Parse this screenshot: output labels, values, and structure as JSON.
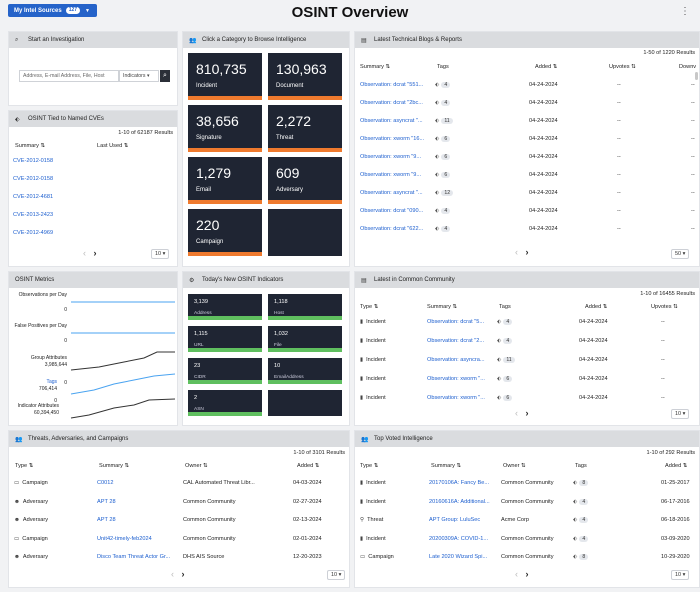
{
  "top": {
    "sources_label": "My Intel Sources",
    "sources_count": "127",
    "title": "OSINT Overview"
  },
  "investigation": {
    "header": "Start an Investigation",
    "placeholder": "Address, E-mail Address, File, Host",
    "type": "Indicators"
  },
  "cves": {
    "header": "OSINT Tied to Named CVEs",
    "results": "1-10 of 62187 Results",
    "col_summary": "Summary",
    "col_used": "Last Used",
    "rows": [
      "CVE-2012-0158",
      "CVE-2012-0158",
      "CVE-2012-4681",
      "CVE-2013-2423",
      "CVE-2012-4969"
    ],
    "page_size": "10"
  },
  "categories": {
    "header": "Click a Category to Browse Intelligence",
    "tiles": [
      {
        "n": "810,735",
        "l": "Incident"
      },
      {
        "n": "130,963",
        "l": "Document"
      },
      {
        "n": "38,656",
        "l": "Signature"
      },
      {
        "n": "2,272",
        "l": "Threat"
      },
      {
        "n": "1,279",
        "l": "Email"
      },
      {
        "n": "609",
        "l": "Adversary"
      },
      {
        "n": "220",
        "l": "Campaign"
      }
    ]
  },
  "blogs": {
    "header": "Latest Technical Blogs & Reports",
    "results": "1-50 of 1220 Results",
    "col_summary": "Summary",
    "col_tags": "Tags",
    "col_added": "Added",
    "col_upvotes": "Upvotes",
    "col_down": "Downv",
    "rows": [
      {
        "s": "Observation: dcrat \"551...",
        "t": "4",
        "d": "04-24-2024",
        "u": "--",
        "v": "--"
      },
      {
        "s": "Observation: dcrat \"2bc...",
        "t": "4",
        "d": "04-24-2024",
        "u": "--",
        "v": "--"
      },
      {
        "s": "Observation: asyncrat \"...",
        "t": "11",
        "d": "04-24-2024",
        "u": "--",
        "v": "--"
      },
      {
        "s": "Observation: xworm \"16...",
        "t": "6",
        "d": "04-24-2024",
        "u": "--",
        "v": "--"
      },
      {
        "s": "Observation: xworm \"9...",
        "t": "6",
        "d": "04-24-2024",
        "u": "--",
        "v": "--"
      },
      {
        "s": "Observation: xworm \"9...",
        "t": "6",
        "d": "04-24-2024",
        "u": "--",
        "v": "--"
      },
      {
        "s": "Observation: asyncrat \"...",
        "t": "12",
        "d": "04-24-2024",
        "u": "--",
        "v": "--"
      },
      {
        "s": "Observation: dcrat \"090...",
        "t": "4",
        "d": "04-24-2024",
        "u": "--",
        "v": "--"
      },
      {
        "s": "Observation: dcrat \"622...",
        "t": "4",
        "d": "04-24-2024",
        "u": "--",
        "v": "--"
      },
      {
        "s": "Observation: dcrat \"a7d...",
        "t": "4",
        "d": "",
        "u": "",
        "v": ""
      }
    ],
    "page_size": "50"
  },
  "metrics": {
    "header": "OSINT Metrics",
    "labels": [
      {
        "name": "Observations per Day",
        "val": "0"
      },
      {
        "name": "False Positives per Day",
        "val": "0"
      },
      {
        "name": "Group Attributes",
        "top": "3,985,644",
        "bot": "0"
      },
      {
        "name": "Tags",
        "top": "706,414",
        "bot": "0"
      },
      {
        "name": "Indicator Attributes",
        "top": "60,394,450"
      }
    ]
  },
  "indicators": {
    "header": "Today's New OSINT Indicators",
    "tiles": [
      {
        "n": "3,139",
        "l": "Address"
      },
      {
        "n": "1,118",
        "l": "Host"
      },
      {
        "n": "1,115",
        "l": "URL"
      },
      {
        "n": "1,032",
        "l": "File"
      },
      {
        "n": "23",
        "l": "CIDR"
      },
      {
        "n": "10",
        "l": "EmailAddress"
      },
      {
        "n": "2",
        "l": "ASN"
      }
    ]
  },
  "community": {
    "header": "Latest in Common Community",
    "results": "1-10 of 16455 Results",
    "col_type": "Type",
    "col_summary": "Summary",
    "col_tags": "Tags",
    "col_added": "Added",
    "col_upvotes": "Upvotes",
    "rows": [
      {
        "type": "Incident",
        "s": "Observation: dcrat \"5...",
        "t": "4",
        "d": "04-24-2024",
        "u": "--"
      },
      {
        "type": "Incident",
        "s": "Observation: dcrat \"2...",
        "t": "4",
        "d": "04-24-2024",
        "u": "--"
      },
      {
        "type": "Incident",
        "s": "Observation: asyncra...",
        "t": "11",
        "d": "04-24-2024",
        "u": "--"
      },
      {
        "type": "Incident",
        "s": "Observation: xworm \"...",
        "t": "6",
        "d": "04-24-2024",
        "u": "--"
      },
      {
        "type": "Incident",
        "s": "Observation: xworm \"...",
        "t": "6",
        "d": "04-24-2024",
        "u": "--"
      }
    ],
    "page_size": "10"
  },
  "threats": {
    "header": "Threats, Adversaries, and Campaigns",
    "results": "1-10 of 3101 Results",
    "col_type": "Type",
    "col_summary": "Summary",
    "col_owner": "Owner",
    "col_added": "Added",
    "rows": [
      {
        "type": "Campaign",
        "s": "C0012",
        "o": "CAL Automated Threat Libr...",
        "d": "04-03-2024"
      },
      {
        "type": "Adversary",
        "s": "APT 28",
        "o": "Common Community",
        "d": "02-27-2024"
      },
      {
        "type": "Adversary",
        "s": "APT 28",
        "o": "Common Community",
        "d": "02-13-2024"
      },
      {
        "type": "Campaign",
        "s": "Unit42-timely-feb2024",
        "o": "Common Community",
        "d": "02-01-2024"
      },
      {
        "type": "Adversary",
        "s": "Disco Team Threat Actor Gr...",
        "o": "DHS AIS Source",
        "d": "12-20-2023"
      }
    ],
    "page_size": "10"
  },
  "topvoted": {
    "header": "Top Voted Intelligence",
    "results": "1-10 of 292 Results",
    "col_type": "Type",
    "col_summary": "Summary",
    "col_owner": "Owner",
    "col_tags": "Tags",
    "col_added": "Added",
    "rows": [
      {
        "type": "Incident",
        "s": "20170106A: Fancy Be...",
        "o": "Common Community",
        "t": "8",
        "d": "01-25-2017"
      },
      {
        "type": "Incident",
        "s": "20160616A: Additional...",
        "o": "Common Community",
        "t": "4",
        "d": "06-17-2016"
      },
      {
        "type": "Threat",
        "s": "APT Group: LuluSec",
        "o": "Acme Corp",
        "t": "4",
        "d": "06-18-2016"
      },
      {
        "type": "Incident",
        "s": "20200309A: COVID-1...",
        "o": "Common Community",
        "t": "4",
        "d": "03-09-2020"
      },
      {
        "type": "Campaign",
        "s": "Late 2020 Wizard Spi...",
        "o": "Common Community",
        "t": "8",
        "d": "10-29-2020"
      }
    ],
    "page_size": "10"
  },
  "colors": {
    "accent": "#2563c9",
    "tile": "#1f2533",
    "orange": "#ef7a2e",
    "green": "#5fbf5f"
  }
}
